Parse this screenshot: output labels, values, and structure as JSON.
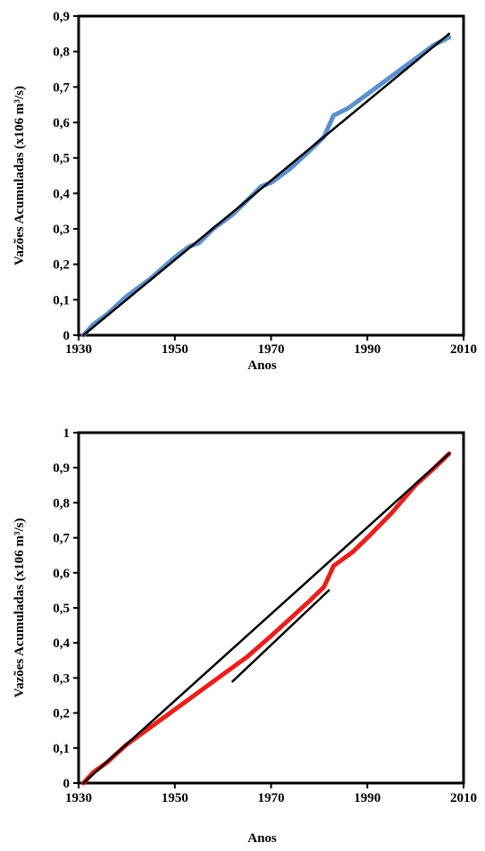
{
  "chart_data": [
    {
      "type": "line",
      "xlabel": "Anos",
      "ylabel": "Vazões Acumuladas (x106 m³/s)",
      "xlim": [
        1930,
        2010
      ],
      "ylim": [
        0,
        0.9
      ],
      "x_ticks": [
        1930,
        1950,
        1970,
        1990,
        2010
      ],
      "y_ticks": [
        0,
        0.1,
        0.2,
        0.3,
        0.4,
        0.5,
        0.6,
        0.7,
        0.8,
        0.9
      ],
      "x_tick_labels": [
        "1930",
        "1950",
        "1970",
        "1990",
        "2010"
      ],
      "y_tick_labels": [
        "0",
        "0,1",
        "0,2",
        "0,3",
        "0,4",
        "0,5",
        "0,6",
        "0,7",
        "0,8",
        "0,9"
      ],
      "grid": false,
      "colors": {
        "observed": "#5b8fce",
        "trend": "#000000"
      },
      "series": [
        {
          "x": [
            1931,
            1933,
            1936,
            1940,
            1945,
            1950,
            1953,
            1955,
            1958,
            1962,
            1965,
            1968,
            1970,
            1974,
            1978,
            1981,
            1983,
            1986,
            1990,
            1995,
            2000,
            2004,
            2007
          ],
          "y": [
            0.0,
            0.03,
            0.06,
            0.11,
            0.16,
            0.22,
            0.25,
            0.26,
            0.3,
            0.34,
            0.38,
            0.42,
            0.43,
            0.47,
            0.52,
            0.56,
            0.62,
            0.64,
            0.68,
            0.73,
            0.78,
            0.82,
            0.84
          ]
        },
        {
          "x": [
            1931,
            2007
          ],
          "y": [
            0.0,
            0.85
          ]
        }
      ]
    },
    {
      "type": "line",
      "xlabel": "Anos",
      "ylabel": "Vazões Acumuladas (x106 m³/s)",
      "xlim": [
        1930,
        2010
      ],
      "ylim": [
        0,
        1
      ],
      "x_ticks": [
        1930,
        1950,
        1970,
        1990,
        2010
      ],
      "y_ticks": [
        0,
        0.1,
        0.2,
        0.3,
        0.4,
        0.5,
        0.6,
        0.7,
        0.8,
        0.9,
        1
      ],
      "x_tick_labels": [
        "1930",
        "1950",
        "1970",
        "1990",
        "2010"
      ],
      "y_tick_labels": [
        "0",
        "0,1",
        "0,2",
        "0,3",
        "0,4",
        "0,5",
        "0,6",
        "0,7",
        "0,8",
        "0,9",
        "1"
      ],
      "grid": false,
      "colors": {
        "observed": "#e8201c",
        "trend": "#000000"
      },
      "series": [
        {
          "x": [
            1931,
            1933,
            1936,
            1940,
            1945,
            1950,
            1955,
            1960,
            1965,
            1970,
            1974,
            1978,
            1981,
            1983,
            1987,
            1990,
            1995,
            2000,
            2004,
            2007
          ],
          "y": [
            0.0,
            0.03,
            0.06,
            0.11,
            0.16,
            0.21,
            0.26,
            0.31,
            0.36,
            0.42,
            0.47,
            0.52,
            0.56,
            0.62,
            0.66,
            0.7,
            0.77,
            0.85,
            0.9,
            0.94
          ]
        },
        {
          "x": [
            1931,
            2007
          ],
          "y": [
            0.0,
            0.94
          ]
        },
        {
          "x": [
            1962,
            1982
          ],
          "y": [
            0.29,
            0.55
          ]
        }
      ]
    }
  ]
}
